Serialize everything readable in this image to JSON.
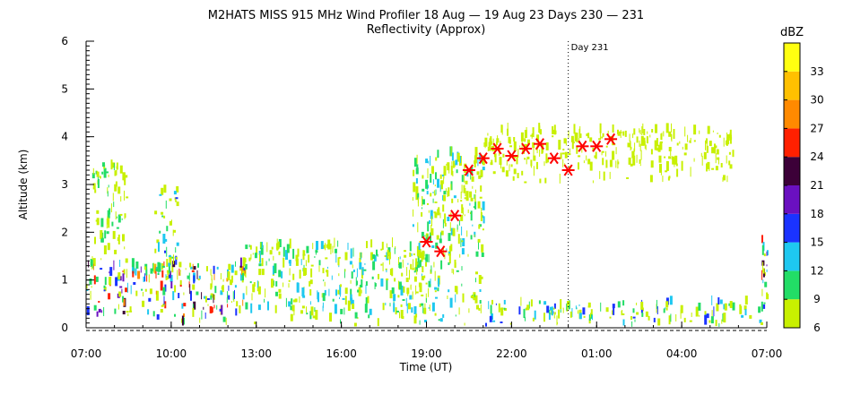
{
  "chart_data": {
    "type": "heatmap",
    "title": "M2HATS MISS 915 MHz Wind Profiler  18 Aug — 19 Aug 23 Days 230 — 231",
    "subtitle": "Reflectivity (Approx)",
    "xlabel": "Time (UT)",
    "ylabel": "Altitude (km)",
    "x_ticks": [
      "07:00",
      "10:00",
      "13:00",
      "16:00",
      "19:00",
      "22:00",
      "01:00",
      "04:00",
      "07:00"
    ],
    "x_range_hours": [
      7,
      31
    ],
    "y_ticks": [
      "0",
      "1",
      "2",
      "3",
      "4",
      "5",
      "6"
    ],
    "ylim": [
      0,
      6
    ],
    "day_marker": {
      "label": "Day 231",
      "x_hour": 24
    },
    "colorbar": {
      "unit": "dBZ",
      "ticks": [
        "6",
        "9",
        "12",
        "15",
        "18",
        "21",
        "24",
        "27",
        "30",
        "33"
      ],
      "colors": [
        "#c8f000",
        "#22dd66",
        "#1ec8f0",
        "#1a33ff",
        "#6a10c0",
        "#3c0038",
        "#ff2000",
        "#ff8a00",
        "#ffc000",
        "#ffff10"
      ]
    },
    "boundary_layer_height_markers": {
      "color": "#ff0000",
      "points": [
        {
          "x": 19.0,
          "y": 1.8
        },
        {
          "x": 19.5,
          "y": 1.6
        },
        {
          "x": 20.0,
          "y": 2.35
        },
        {
          "x": 20.5,
          "y": 3.3
        },
        {
          "x": 21.0,
          "y": 3.55
        },
        {
          "x": 21.5,
          "y": 3.75
        },
        {
          "x": 22.0,
          "y": 3.6
        },
        {
          "x": 22.5,
          "y": 3.75
        },
        {
          "x": 23.0,
          "y": 3.85
        },
        {
          "x": 23.5,
          "y": 3.55
        },
        {
          "x": 24.0,
          "y": 3.3
        },
        {
          "x": 24.5,
          "y": 3.8
        },
        {
          "x": 25.0,
          "y": 3.8
        },
        {
          "x": 25.5,
          "y": 3.95
        }
      ]
    },
    "echo_regions": [
      {
        "x": [
          7.0,
          12.6
        ],
        "y": [
          0.0,
          1.3
        ],
        "dbz": "6-27"
      },
      {
        "x": [
          9.4,
          10.2
        ],
        "y": [
          1.0,
          2.9
        ],
        "dbz": "6-15"
      },
      {
        "x": [
          7.2,
          8.4
        ],
        "y": [
          1.3,
          3.4
        ],
        "dbz": "6-9"
      },
      {
        "x": [
          12.5,
          19.0
        ],
        "y": [
          0.0,
          1.7
        ],
        "dbz": "6-12"
      },
      {
        "x": [
          18.5,
          21.0
        ],
        "y": [
          0.0,
          3.6
        ],
        "dbz": "6-12"
      },
      {
        "x": [
          21.0,
          26.5
        ],
        "y": [
          3.0,
          4.1
        ],
        "dbz": "6"
      },
      {
        "x": [
          26.5,
          29.8
        ],
        "y": [
          3.0,
          4.1
        ],
        "dbz": "6"
      },
      {
        "x": [
          21.0,
          31.0
        ],
        "y": [
          0.0,
          0.5
        ],
        "dbz": "6-15"
      },
      {
        "x": [
          30.8,
          31.0
        ],
        "y": [
          0.0,
          1.8
        ],
        "dbz": "6-24"
      }
    ]
  }
}
